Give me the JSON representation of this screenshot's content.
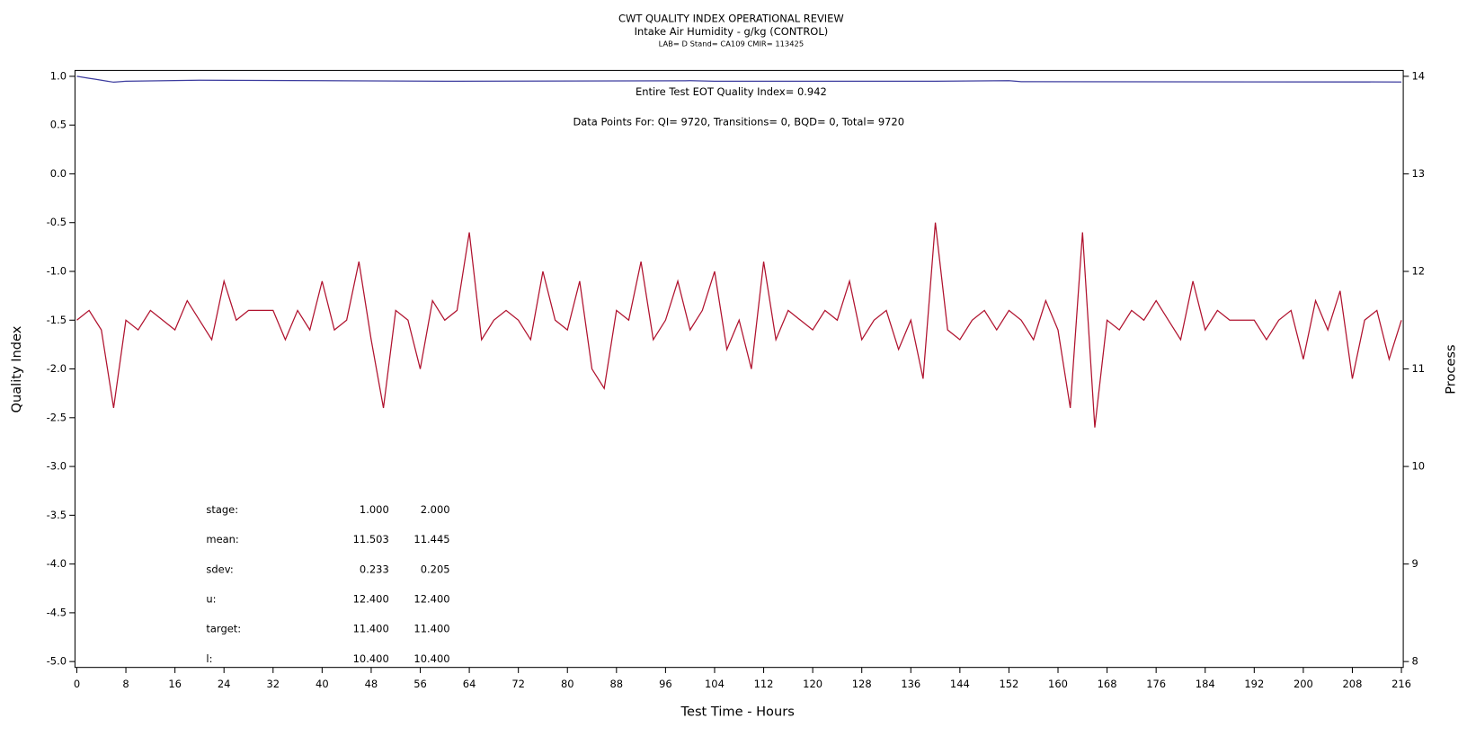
{
  "chart_data": {
    "type": "line",
    "title": "CWT QUALITY INDEX OPERATIONAL REVIEW",
    "subtitle": "Intake Air Humidity - g/kg (CONTROL)",
    "subtitle2": "LAB= D Stand= CA109 CMIR= 113425",
    "annotations": [
      "Entire Test EOT Quality Index=   0.942",
      "Data Points For: QI=  9720, Transitions=     0, BQD=     0, Total=  9720"
    ],
    "xlabel": "Test Time - Hours",
    "ylabel": "Quality Index",
    "y2label": "Process",
    "xlim": [
      -0.3,
      216.3
    ],
    "xticks": [
      0,
      8,
      16,
      24,
      32,
      40,
      48,
      56,
      64,
      72,
      80,
      88,
      96,
      104,
      112,
      120,
      128,
      136,
      144,
      152,
      160,
      168,
      176,
      184,
      192,
      200,
      208,
      216
    ],
    "ylim": [
      -5.06,
      1.06
    ],
    "yticks": [
      {
        "value": 1.0,
        "label": "1.0"
      },
      {
        "value": 0.5,
        "label": "0.5"
      },
      {
        "value": 0.0,
        "label": "0.0"
      },
      {
        "value": -0.5,
        "label": "-0.5"
      },
      {
        "value": -1.0,
        "label": "-1.0"
      },
      {
        "value": -1.5,
        "label": "-1.5"
      },
      {
        "value": -2.0,
        "label": "-2.0"
      },
      {
        "value": -2.5,
        "label": "-2.5"
      },
      {
        "value": -3.0,
        "label": "-3.0"
      },
      {
        "value": -3.5,
        "label": "-3.5"
      },
      {
        "value": -4.0,
        "label": "-4.0"
      },
      {
        "value": -4.5,
        "label": "-4.5"
      },
      {
        "value": -5.0,
        "label": "-5.0"
      }
    ],
    "y2lim": [
      7.94,
      14.06
    ],
    "y2ticks": [
      8,
      9,
      10,
      11,
      12,
      13,
      14
    ],
    "series": [
      {
        "name": "Quality Index",
        "color": "#3b3b9e",
        "axis": "y",
        "x": [
          0,
          1,
          2,
          3,
          4,
          5,
          6,
          8,
          20,
          40,
          60,
          100,
          104,
          140,
          152,
          154,
          216
        ],
        "values": [
          1.0,
          0.99,
          0.98,
          0.97,
          0.96,
          0.95,
          0.94,
          0.95,
          0.96,
          0.955,
          0.95,
          0.955,
          0.95,
          0.95,
          0.955,
          0.945,
          0.942
        ]
      },
      {
        "name": "Intake Air Humidity",
        "color": "#b0122e",
        "axis": "y2",
        "x": [
          0,
          2,
          4,
          6,
          8,
          10,
          12,
          14,
          16,
          18,
          20,
          22,
          24,
          26,
          28,
          30,
          32,
          34,
          36,
          38,
          40,
          42,
          44,
          46,
          48,
          50,
          52,
          54,
          56,
          58,
          60,
          62,
          64,
          66,
          68,
          70,
          72,
          74,
          76,
          78,
          80,
          82,
          84,
          86,
          88,
          90,
          92,
          94,
          96,
          98,
          100,
          102,
          104,
          106,
          108,
          110,
          112,
          114,
          116,
          118,
          120,
          122,
          124,
          126,
          128,
          130,
          132,
          134,
          136,
          138,
          140,
          142,
          144,
          146,
          148,
          150,
          152,
          154,
          156,
          158,
          160,
          162,
          164,
          166,
          168,
          170,
          172,
          174,
          176,
          178,
          180,
          182,
          184,
          186,
          188,
          190,
          192,
          194,
          196,
          198,
          200,
          202,
          204,
          206,
          208,
          210,
          212,
          214,
          216
        ],
        "values": [
          11.5,
          11.6,
          11.4,
          10.6,
          11.5,
          11.4,
          11.6,
          11.5,
          11.4,
          11.7,
          11.5,
          11.3,
          11.9,
          11.5,
          11.6,
          11.6,
          11.6,
          11.3,
          11.6,
          11.4,
          11.9,
          11.4,
          11.5,
          12.1,
          11.3,
          10.6,
          11.6,
          11.5,
          11.0,
          11.7,
          11.5,
          11.6,
          12.4,
          11.3,
          11.5,
          11.6,
          11.5,
          11.3,
          12.0,
          11.5,
          11.4,
          11.9,
          11.0,
          10.8,
          11.6,
          11.5,
          12.1,
          11.3,
          11.5,
          11.9,
          11.4,
          11.6,
          12.0,
          11.2,
          11.5,
          11.0,
          12.1,
          11.3,
          11.6,
          11.5,
          11.4,
          11.6,
          11.5,
          11.9,
          11.3,
          11.5,
          11.6,
          11.2,
          11.5,
          10.9,
          12.5,
          11.4,
          11.3,
          11.5,
          11.6,
          11.4,
          11.6,
          11.5,
          11.3,
          11.7,
          11.4,
          10.6,
          12.4,
          10.4,
          11.5,
          11.4,
          11.6,
          11.5,
          11.7,
          11.5,
          11.3,
          11.9,
          11.4,
          11.6,
          11.5,
          11.5,
          11.5,
          11.3,
          11.5,
          11.6,
          11.1,
          11.7,
          11.4,
          11.8,
          10.9,
          11.5,
          11.6,
          11.1,
          11.5
        ]
      }
    ],
    "stats_table": {
      "rows": [
        {
          "label": "stage:",
          "cells": [
            "1.000",
            "2.000"
          ]
        },
        {
          "label": "mean:",
          "cells": [
            "11.503",
            "11.445"
          ]
        },
        {
          "label": "sdev:",
          "cells": [
            "0.233",
            "0.205"
          ]
        },
        {
          "label": "u:",
          "cells": [
            "12.400",
            "12.400"
          ]
        },
        {
          "label": "target:",
          "cells": [
            "11.400",
            "11.400"
          ]
        },
        {
          "label": "l:",
          "cells": [
            "10.400",
            "10.400"
          ]
        }
      ]
    }
  }
}
